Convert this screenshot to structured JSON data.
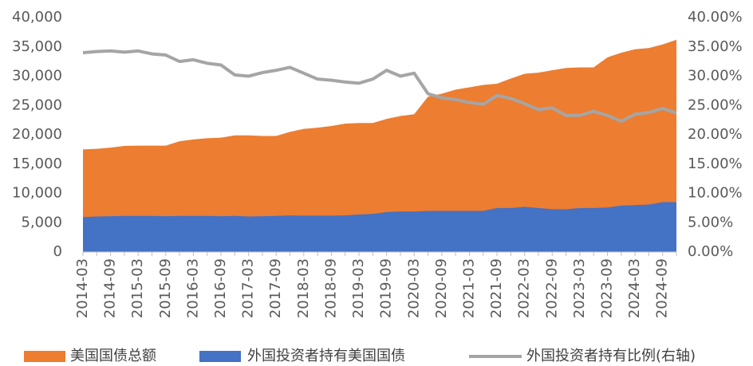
{
  "chart_data": {
    "type": "area",
    "categories": [
      "2014-03",
      null,
      "2014-09",
      null,
      "2015-03",
      null,
      "2015-09",
      null,
      "2016-03",
      null,
      "2016-09",
      null,
      "2017-03",
      null,
      "2017-09",
      null,
      "2018-03",
      null,
      "2018-09",
      null,
      "2019-03",
      null,
      "2019-09",
      null,
      "2020-03",
      null,
      "2020-09",
      null,
      "2021-03",
      null,
      "2021-09",
      null,
      "2022-03",
      null,
      "2022-09",
      null,
      "2023-03",
      null,
      "2023-09",
      null,
      "2024-03",
      null,
      "2024-09",
      null
    ],
    "series": [
      {
        "name": "美国国债总额",
        "type": "area",
        "color": "#ED7D31",
        "values": [
          17500,
          17600,
          17800,
          18100,
          18150,
          18150,
          18150,
          18900,
          19200,
          19400,
          19500,
          19900,
          19900,
          19800,
          19800,
          20500,
          21000,
          21200,
          21500,
          21900,
          22000,
          22000,
          22700,
          23200,
          23500,
          26500,
          27000,
          27700,
          28100,
          28500,
          28700,
          29600,
          30400,
          30600,
          31000,
          31400,
          31500,
          31500,
          33200,
          34000,
          34600,
          34800,
          35400,
          36200
        ]
      },
      {
        "name": "外国投资者持有美国国债",
        "type": "area",
        "color": "#4472C4",
        "values": [
          5950,
          6050,
          6100,
          6150,
          6150,
          6150,
          6100,
          6150,
          6150,
          6150,
          6100,
          6150,
          6050,
          6100,
          6150,
          6250,
          6200,
          6200,
          6200,
          6250,
          6400,
          6500,
          6800,
          6900,
          6900,
          7000,
          7000,
          7000,
          7000,
          7000,
          7500,
          7500,
          7700,
          7500,
          7300,
          7300,
          7500,
          7500,
          7600,
          7900,
          8000,
          8100,
          8500,
          8500
        ]
      },
      {
        "name": "外国投资者持有比例(右轴)",
        "type": "line",
        "axis": "y2",
        "color": "#A5A5A5",
        "values": [
          34.0,
          34.2,
          34.3,
          34.1,
          34.3,
          33.8,
          33.6,
          32.5,
          32.8,
          32.2,
          31.9,
          30.2,
          30.0,
          30.6,
          31.0,
          31.5,
          30.5,
          29.5,
          29.3,
          29.0,
          28.8,
          29.5,
          31.0,
          30.0,
          30.5,
          27.0,
          26.3,
          26.0,
          25.5,
          25.2,
          26.7,
          26.2,
          25.3,
          24.3,
          24.6,
          23.3,
          23.3,
          24.0,
          23.3,
          22.3,
          23.5,
          23.8,
          24.5,
          23.7
        ]
      }
    ],
    "ylim": [
      0,
      40000
    ],
    "yticks": [
      0,
      {
        "value": 5000,
        "label": "5,000"
      },
      {
        "value": 10000,
        "label": "10,000"
      },
      {
        "value": 15000,
        "label": "15,000"
      },
      {
        "value": 20000,
        "label": "20,000"
      },
      {
        "value": 25000,
        "label": "25,000"
      },
      {
        "value": 30000,
        "label": "30,000"
      },
      {
        "value": 35000,
        "label": "35,000"
      },
      {
        "value": 40000,
        "label": "40,000"
      }
    ],
    "y2lim": [
      0,
      40
    ],
    "y2ticks": [
      {
        "value": 0,
        "label": "0.00%"
      },
      {
        "value": 5,
        "label": "5.00%"
      },
      {
        "value": 10,
        "label": "10.00%"
      },
      {
        "value": 15,
        "label": "15.00%"
      },
      {
        "value": 20,
        "label": "20.00%"
      },
      {
        "value": 25,
        "label": "25.00%"
      },
      {
        "value": 30,
        "label": "30.00%"
      },
      {
        "value": 35,
        "label": "35.00%"
      },
      {
        "value": 40,
        "label": "40.00%"
      }
    ],
    "legend": "bottom"
  }
}
